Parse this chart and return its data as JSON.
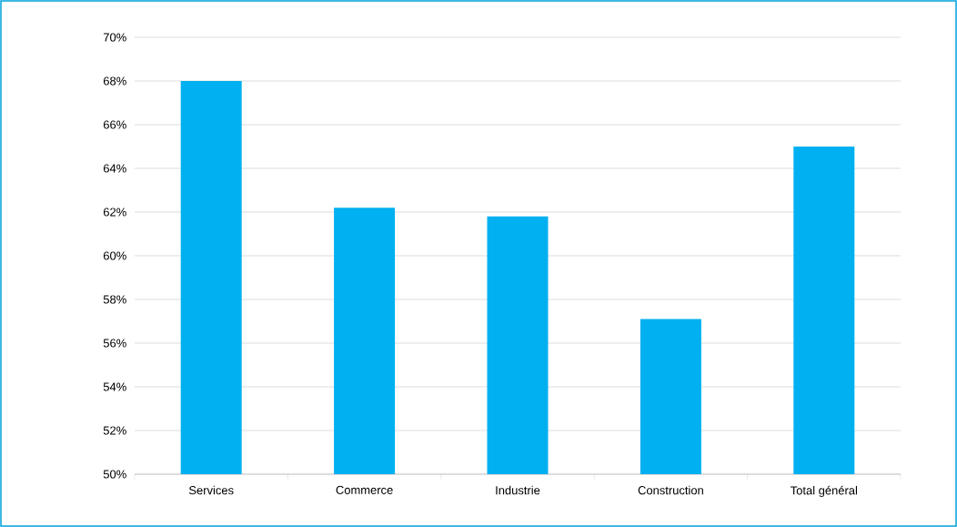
{
  "chart_data": {
    "type": "bar",
    "categories": [
      "Services",
      "Commerce",
      "Industrie",
      "Construction",
      "Total général"
    ],
    "values": [
      68.0,
      62.2,
      61.8,
      57.1,
      65.0
    ],
    "color": "#00b0f0",
    "ylim": [
      50,
      70
    ],
    "yticks": [
      {
        "value": 50,
        "label": "50%"
      },
      {
        "value": 52,
        "label": "52%"
      },
      {
        "value": 54,
        "label": "54%"
      },
      {
        "value": 56,
        "label": "56%"
      },
      {
        "value": 58,
        "label": "58%"
      },
      {
        "value": 60,
        "label": "60%"
      },
      {
        "value": 62,
        "label": "62%"
      },
      {
        "value": 64,
        "label": "64%"
      },
      {
        "value": 66,
        "label": "66%"
      },
      {
        "value": 68,
        "label": "68%"
      },
      {
        "value": 70,
        "label": "70%"
      }
    ],
    "grid": "y"
  }
}
